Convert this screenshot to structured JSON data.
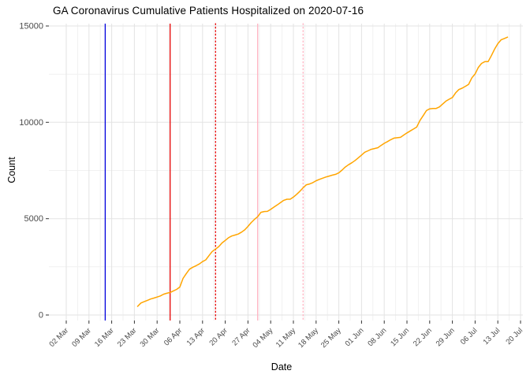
{
  "title": "GA Coronavirus Cumulative Patients Hospitalized on 2020-07-16",
  "chart_data": {
    "type": "line",
    "title": "GA Coronavirus Cumulative Patients Hospitalized on 2020-07-16",
    "xlabel": "Date",
    "ylabel": "Count",
    "ylim": [
      0,
      15000
    ],
    "y_major_ticks": [
      0,
      5000,
      10000,
      15000
    ],
    "y_minor_ticks": [
      2500,
      7500,
      12500
    ],
    "x_start_date": "2020-03-02",
    "x_tick_labels": [
      "02 Mar",
      "09 Mar",
      "16 Mar",
      "23 Mar",
      "30 Mar",
      "06 Apr",
      "13 Apr",
      "20 Apr",
      "27 Apr",
      "04 May",
      "11 May",
      "18 May",
      "25 May",
      "01 Jun",
      "08 Jun",
      "15 Jun",
      "22 Jun",
      "29 Jun",
      "06 Jul",
      "13 Jul",
      "20 Jul"
    ],
    "grid": true,
    "legend": "none",
    "colors": {
      "series": "#FFA500",
      "vline_blue": "#0000DD",
      "vline_red": "#E60000",
      "vline_pink": "#FFB3C1",
      "grid_major": "#E3E3E3",
      "grid_minor": "#F1F1F1",
      "axis_text": "#4a4a4a",
      "tick_mark": "#333333"
    },
    "reference_lines": [
      {
        "date": "2020-03-14",
        "color": "#0000DD",
        "style": "solid"
      },
      {
        "date": "2020-04-03",
        "color": "#E60000",
        "style": "solid"
      },
      {
        "date": "2020-04-17",
        "color": "#E60000",
        "style": "dotted"
      },
      {
        "date": "2020-04-30",
        "color": "#FFB3C1",
        "style": "solid"
      },
      {
        "date": "2020-05-14",
        "color": "#FFB3C1",
        "style": "dotted"
      }
    ],
    "series": [
      {
        "name": "cumulative-patients-hospitalized",
        "color": "#FFA500",
        "points": [
          [
            "2020-03-24",
            450
          ],
          [
            "2020-03-25",
            620
          ],
          [
            "2020-03-26",
            690
          ],
          [
            "2020-03-27",
            760
          ],
          [
            "2020-03-28",
            830
          ],
          [
            "2020-03-29",
            880
          ],
          [
            "2020-03-30",
            930
          ],
          [
            "2020-03-31",
            990
          ],
          [
            "2020-04-01",
            1080
          ],
          [
            "2020-04-02",
            1130
          ],
          [
            "2020-04-03",
            1170
          ],
          [
            "2020-04-04",
            1250
          ],
          [
            "2020-04-05",
            1330
          ],
          [
            "2020-04-06",
            1450
          ],
          [
            "2020-04-07",
            1900
          ],
          [
            "2020-04-08",
            2150
          ],
          [
            "2020-04-09",
            2380
          ],
          [
            "2020-04-10",
            2480
          ],
          [
            "2020-04-11",
            2560
          ],
          [
            "2020-04-12",
            2650
          ],
          [
            "2020-04-13",
            2770
          ],
          [
            "2020-04-14",
            2860
          ],
          [
            "2020-04-15",
            3080
          ],
          [
            "2020-04-16",
            3300
          ],
          [
            "2020-04-17",
            3420
          ],
          [
            "2020-04-18",
            3550
          ],
          [
            "2020-04-19",
            3740
          ],
          [
            "2020-04-20",
            3870
          ],
          [
            "2020-04-21",
            4010
          ],
          [
            "2020-04-22",
            4100
          ],
          [
            "2020-04-23",
            4150
          ],
          [
            "2020-04-24",
            4200
          ],
          [
            "2020-04-25",
            4300
          ],
          [
            "2020-04-26",
            4420
          ],
          [
            "2020-04-27",
            4600
          ],
          [
            "2020-04-28",
            4800
          ],
          [
            "2020-04-29",
            4960
          ],
          [
            "2020-04-30",
            5100
          ],
          [
            "2020-05-01",
            5330
          ],
          [
            "2020-05-02",
            5370
          ],
          [
            "2020-05-03",
            5380
          ],
          [
            "2020-05-04",
            5480
          ],
          [
            "2020-05-05",
            5600
          ],
          [
            "2020-05-06",
            5710
          ],
          [
            "2020-05-07",
            5830
          ],
          [
            "2020-05-08",
            5950
          ],
          [
            "2020-05-09",
            6010
          ],
          [
            "2020-05-10",
            6010
          ],
          [
            "2020-05-11",
            6120
          ],
          [
            "2020-05-12",
            6260
          ],
          [
            "2020-05-13",
            6420
          ],
          [
            "2020-05-14",
            6600
          ],
          [
            "2020-05-15",
            6760
          ],
          [
            "2020-05-16",
            6800
          ],
          [
            "2020-05-17",
            6870
          ],
          [
            "2020-05-18",
            6970
          ],
          [
            "2020-05-19",
            7040
          ],
          [
            "2020-05-20",
            7100
          ],
          [
            "2020-05-21",
            7160
          ],
          [
            "2020-05-22",
            7210
          ],
          [
            "2020-05-23",
            7260
          ],
          [
            "2020-05-24",
            7300
          ],
          [
            "2020-05-25",
            7380
          ],
          [
            "2020-05-26",
            7520
          ],
          [
            "2020-05-27",
            7680
          ],
          [
            "2020-05-28",
            7800
          ],
          [
            "2020-05-29",
            7900
          ],
          [
            "2020-05-30",
            8020
          ],
          [
            "2020-05-31",
            8160
          ],
          [
            "2020-06-01",
            8300
          ],
          [
            "2020-06-02",
            8450
          ],
          [
            "2020-06-03",
            8520
          ],
          [
            "2020-06-04",
            8600
          ],
          [
            "2020-06-05",
            8640
          ],
          [
            "2020-06-06",
            8680
          ],
          [
            "2020-06-07",
            8800
          ],
          [
            "2020-06-08",
            8910
          ],
          [
            "2020-06-09",
            9000
          ],
          [
            "2020-06-10",
            9100
          ],
          [
            "2020-06-11",
            9180
          ],
          [
            "2020-06-12",
            9200
          ],
          [
            "2020-06-13",
            9220
          ],
          [
            "2020-06-14",
            9340
          ],
          [
            "2020-06-15",
            9450
          ],
          [
            "2020-06-16",
            9550
          ],
          [
            "2020-06-17",
            9650
          ],
          [
            "2020-06-18",
            9750
          ],
          [
            "2020-06-19",
            10100
          ],
          [
            "2020-06-20",
            10350
          ],
          [
            "2020-06-21",
            10610
          ],
          [
            "2020-06-22",
            10700
          ],
          [
            "2020-06-23",
            10720
          ],
          [
            "2020-06-24",
            10720
          ],
          [
            "2020-06-25",
            10800
          ],
          [
            "2020-06-26",
            10950
          ],
          [
            "2020-06-27",
            11100
          ],
          [
            "2020-06-28",
            11200
          ],
          [
            "2020-06-29",
            11290
          ],
          [
            "2020-06-30",
            11530
          ],
          [
            "2020-07-01",
            11700
          ],
          [
            "2020-07-02",
            11770
          ],
          [
            "2020-07-03",
            11870
          ],
          [
            "2020-07-04",
            11970
          ],
          [
            "2020-07-05",
            12310
          ],
          [
            "2020-07-06",
            12510
          ],
          [
            "2020-07-07",
            12850
          ],
          [
            "2020-07-08",
            13060
          ],
          [
            "2020-07-09",
            13150
          ],
          [
            "2020-07-10",
            13150
          ],
          [
            "2020-07-11",
            13460
          ],
          [
            "2020-07-12",
            13800
          ],
          [
            "2020-07-13",
            14080
          ],
          [
            "2020-07-14",
            14280
          ],
          [
            "2020-07-15",
            14350
          ],
          [
            "2020-07-16",
            14420
          ]
        ]
      }
    ]
  }
}
